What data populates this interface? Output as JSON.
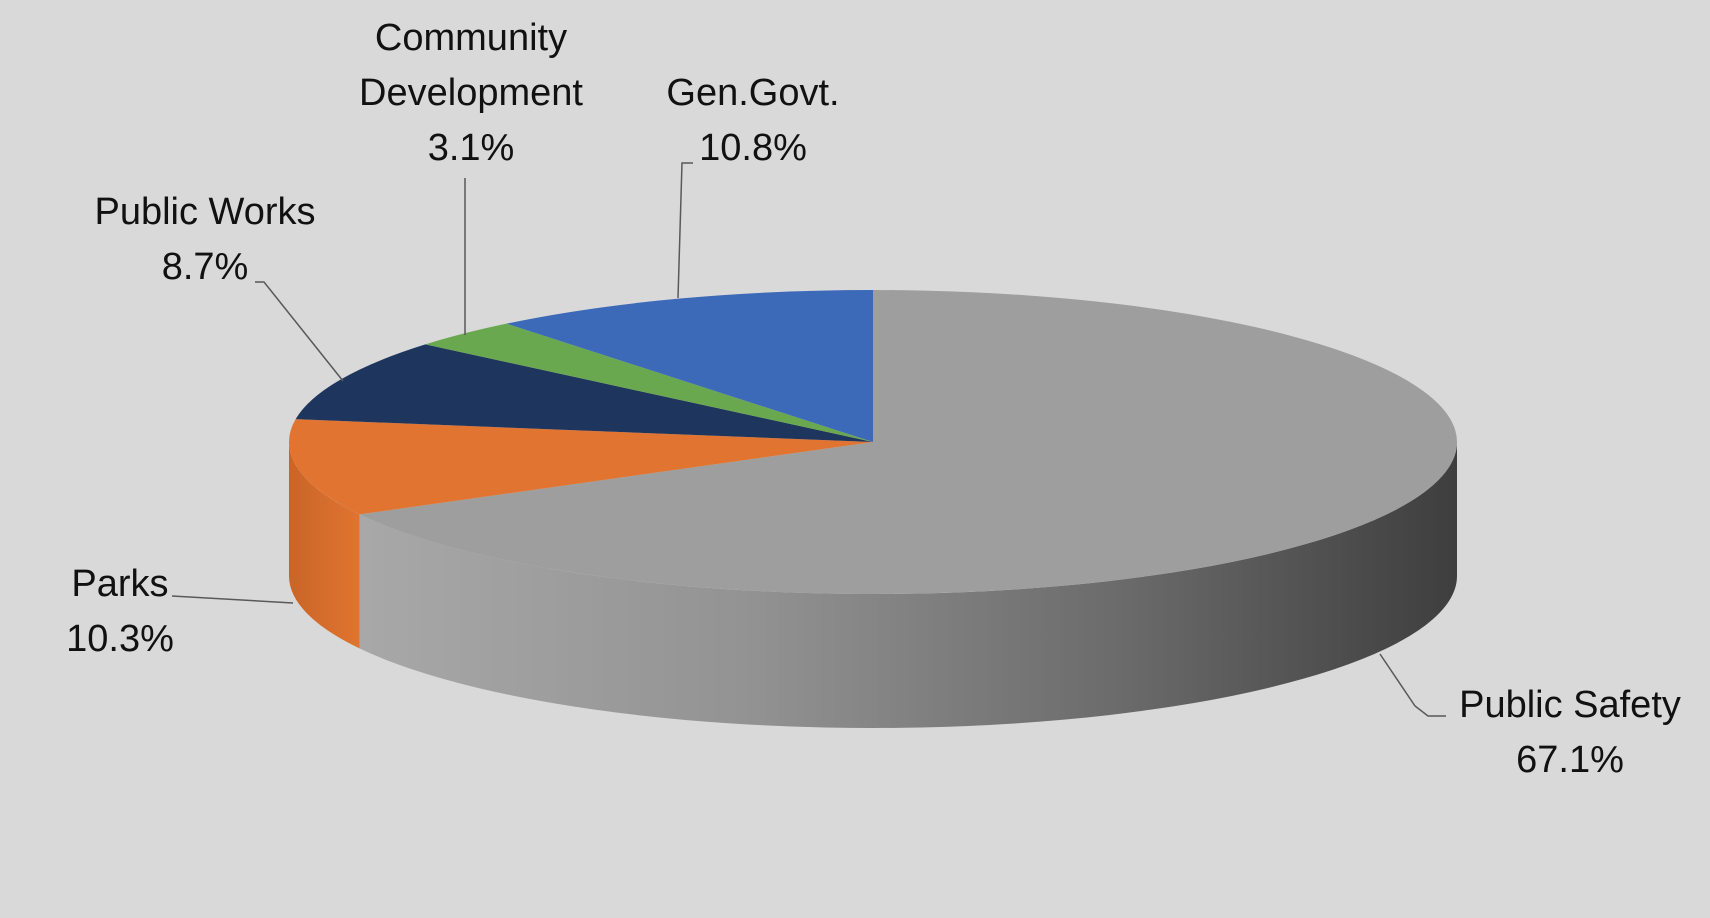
{
  "chart_data": {
    "type": "pie",
    "style": "3d",
    "slices": [
      {
        "label": "Public Safety",
        "value": 67.1,
        "value_label": "67.1%",
        "color": "#9e9e9e"
      },
      {
        "label": "Parks",
        "value": 10.3,
        "value_label": "10.3%",
        "color": "#e07430"
      },
      {
        "label": "Public Works",
        "value": 8.7,
        "value_label": "8.7%",
        "color": "#1e355e"
      },
      {
        "label": "Community Development",
        "value": 3.1,
        "value_label": "3.1%",
        "color": "#6aa84f"
      },
      {
        "label": "Gen.Govt.",
        "value": 10.8,
        "value_label": "10.8%",
        "color": "#3c69b8"
      }
    ]
  }
}
